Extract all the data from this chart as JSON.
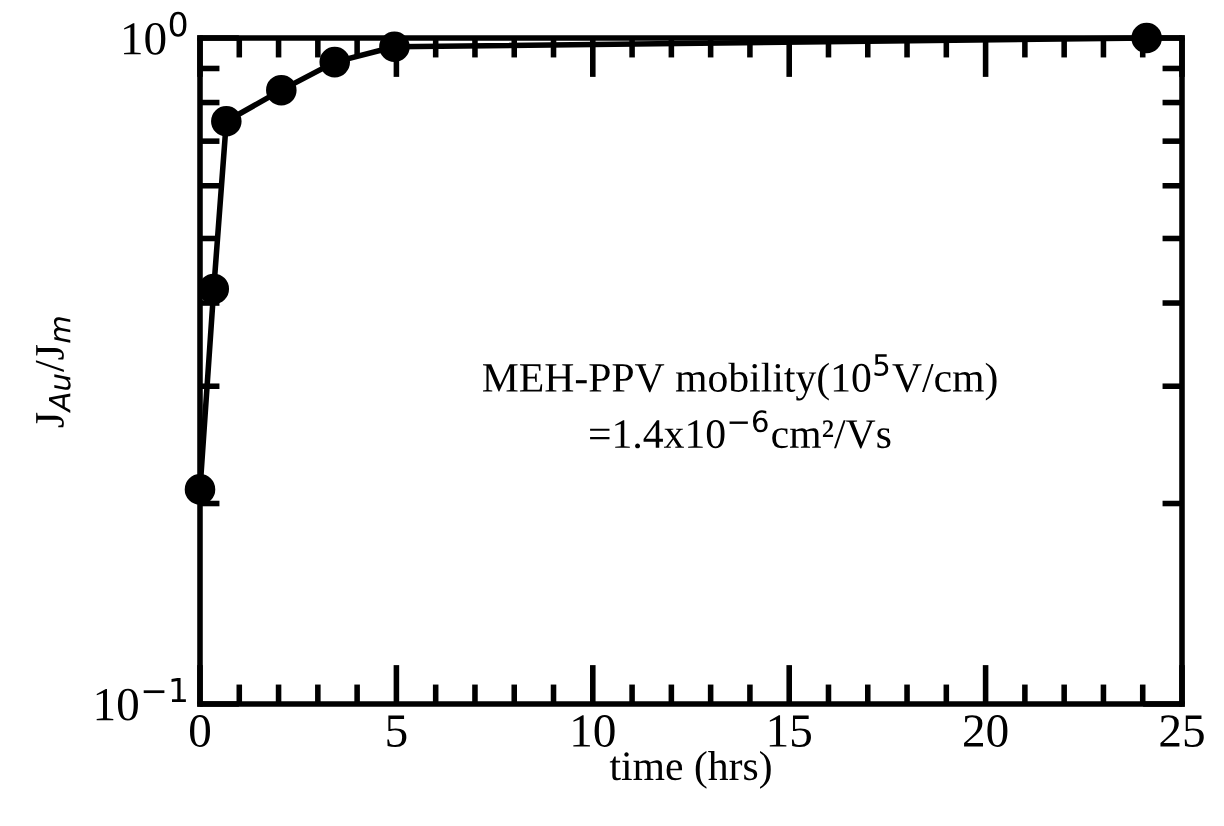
{
  "chart_data": {
    "type": "line",
    "xlabel": "time (hrs)",
    "ylabel": "J$_{Au}$/J$_{m}$",
    "x": [
      0,
      0.35,
      0.67,
      2.07,
      3.43,
      4.95,
      24.1
    ],
    "series": [
      {
        "color": "#000000",
        "values": [
          0.21,
          0.42,
          0.75,
          0.835,
          0.92,
          0.97,
          1.0
        ]
      }
    ],
    "marker": "circle",
    "line_style": "solid",
    "log": "y",
    "grid": false,
    "legend": false,
    "xlim": [
      0,
      25
    ],
    "xticks": [
      0,
      5,
      10,
      15,
      20,
      25
    ],
    "ylim": [
      0.1,
      1
    ],
    "yticks": [
      {
        "value": 0.1,
        "label": "10$^{−1}$"
      },
      {
        "value": 1,
        "label": "10$^{0}$"
      }
    ],
    "annotations": [
      "MEH-PPV mobility(10$^{5}$V/cm)",
      "=1.4x10$^{−6}$cm²/Vs"
    ]
  }
}
